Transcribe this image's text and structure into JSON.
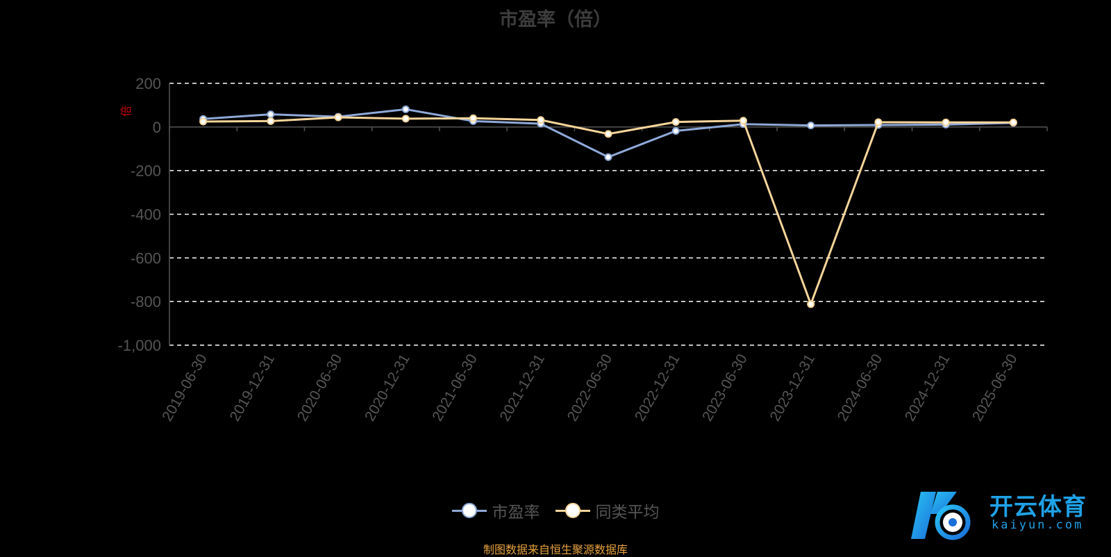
{
  "chart_data": {
    "type": "line",
    "title": "市盈率（倍）",
    "ylabel": "倍",
    "ylim": [
      -1000,
      200
    ],
    "yticks": [
      200,
      0,
      -200,
      -400,
      -600,
      -800,
      -1000
    ],
    "ytick_labels": [
      "200",
      "0",
      "-200",
      "-400",
      "-600",
      "-800",
      "-1,000"
    ],
    "grid": "dashed",
    "legend_position": "bottom-center",
    "categories": [
      "2019-06-30",
      "2019-12-31",
      "2020-06-30",
      "2020-12-31",
      "2021-06-30",
      "2021-12-31",
      "2022-06-30",
      "2022-12-31",
      "2023-06-30",
      "2023-12-31",
      "2024-06-30",
      "2024-12-31",
      "2025-06-30"
    ],
    "series": [
      {
        "name": "市盈率",
        "color": "#8fa9d8",
        "values": [
          37,
          58,
          47,
          81,
          27,
          15,
          -138,
          -18,
          13,
          7,
          9,
          11,
          19
        ]
      },
      {
        "name": "同类平均",
        "color": "#f6d59a",
        "values": [
          25,
          27,
          44,
          38,
          40,
          32,
          -32,
          23,
          29,
          -812,
          22,
          21,
          21
        ]
      }
    ]
  },
  "source_note": "制图数据来自恒生聚源数据库",
  "logo": {
    "cn": "开云体育",
    "en": "kaiyun.com"
  }
}
